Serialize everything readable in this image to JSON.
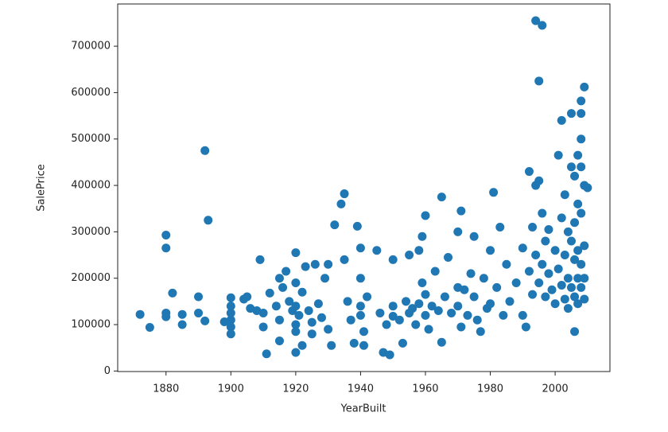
{
  "chart_data": {
    "type": "scatter",
    "xlabel": "YearBuilt",
    "ylabel": "SalePrice",
    "color": "#1f77b4",
    "xlim": [
      1865.1,
      2016.9
    ],
    "ylim": [
      -1105,
      791005
    ],
    "xticks": [
      1880,
      1900,
      1920,
      1940,
      1960,
      1980,
      2000
    ],
    "yticks": [
      0,
      100000,
      200000,
      300000,
      400000,
      500000,
      600000,
      700000
    ],
    "x": [
      1872,
      1875,
      1880,
      1880,
      1880,
      1880,
      1882,
      1885,
      1885,
      1890,
      1890,
      1892,
      1892,
      1893,
      1898,
      1900,
      1900,
      1900,
      1900,
      1900,
      1900,
      1904,
      1905,
      1906,
      1908,
      1909,
      1910,
      1910,
      1911,
      1912,
      1914,
      1915,
      1915,
      1915,
      1916,
      1917,
      1918,
      1919,
      1920,
      1920,
      1920,
      1920,
      1920,
      1920,
      1921,
      1922,
      1922,
      1923,
      1924,
      1925,
      1925,
      1926,
      1927,
      1928,
      1929,
      1930,
      1930,
      1931,
      1932,
      1934,
      1935,
      1935,
      1936,
      1937,
      1938,
      1939,
      1940,
      1940,
      1940,
      1940,
      1941,
      1941,
      1942,
      1945,
      1946,
      1947,
      1948,
      1949,
      1950,
      1950,
      1950,
      1952,
      1953,
      1954,
      1955,
      1955,
      1956,
      1957,
      1958,
      1958,
      1959,
      1959,
      1960,
      1960,
      1960,
      1961,
      1962,
      1963,
      1964,
      1965,
      1965,
      1966,
      1967,
      1968,
      1970,
      1970,
      1970,
      1971,
      1971,
      1972,
      1973,
      1974,
      1975,
      1975,
      1976,
      1977,
      1978,
      1979,
      1980,
      1980,
      1981,
      1982,
      1983,
      1984,
      1985,
      1986,
      1988,
      1990,
      1990,
      1991,
      1992,
      1992,
      1993,
      1993,
      1994,
      1994,
      1994,
      1995,
      1995,
      1995,
      1996,
      1996,
      1996,
      1997,
      1997,
      1998,
      1998,
      1999,
      2000,
      2000,
      2001,
      2001,
      2002,
      2002,
      2002,
      2003,
      2003,
      2003,
      2004,
      2004,
      2004,
      2005,
      2005,
      2005,
      2005,
      2006,
      2006,
      2006,
      2006,
      2006,
      2007,
      2007,
      2007,
      2007,
      2007,
      2008,
      2008,
      2008,
      2008,
      2008,
      2008,
      2008,
      2009,
      2009,
      2009,
      2009,
      2009,
      2010
    ],
    "values": [
      122000,
      94000,
      293000,
      265000,
      117000,
      125000,
      168000,
      122000,
      100000,
      160000,
      125000,
      475000,
      108000,
      325000,
      106000,
      158000,
      140000,
      125000,
      110000,
      95000,
      80000,
      155000,
      160000,
      135000,
      130000,
      240000,
      125000,
      95000,
      37000,
      168000,
      140000,
      200000,
      110000,
      65000,
      180000,
      215000,
      150000,
      130000,
      255000,
      190000,
      140000,
      100000,
      85000,
      40000,
      120000,
      55000,
      170000,
      225000,
      130000,
      105000,
      80000,
      230000,
      145000,
      115000,
      200000,
      90000,
      230000,
      55000,
      315000,
      360000,
      382000,
      240000,
      150000,
      110000,
      60000,
      312000,
      265000,
      200000,
      140000,
      120000,
      85000,
      55000,
      160000,
      260000,
      125000,
      40000,
      100000,
      35000,
      140000,
      118000,
      240000,
      110000,
      60000,
      150000,
      250000,
      125000,
      135000,
      100000,
      260000,
      145000,
      290000,
      190000,
      335000,
      165000,
      120000,
      90000,
      140000,
      215000,
      130000,
      375000,
      62000,
      160000,
      245000,
      125000,
      300000,
      180000,
      140000,
      345000,
      95000,
      175000,
      120000,
      210000,
      290000,
      160000,
      110000,
      85000,
      200000,
      135000,
      260000,
      145000,
      385000,
      180000,
      310000,
      120000,
      230000,
      150000,
      190000,
      265000,
      120000,
      95000,
      430000,
      215000,
      310000,
      165000,
      755000,
      400000,
      250000,
      625000,
      410000,
      190000,
      745000,
      340000,
      230000,
      280000,
      160000,
      210000,
      305000,
      175000,
      260000,
      145000,
      465000,
      220000,
      540000,
      330000,
      185000,
      380000,
      250000,
      155000,
      300000,
      200000,
      135000,
      555000,
      440000,
      280000,
      180000,
      85000,
      420000,
      320000,
      240000,
      160000,
      465000,
      360000,
      260000,
      200000,
      145000,
      582000,
      555000,
      500000,
      440000,
      340000,
      230000,
      180000,
      612000,
      400000,
      270000,
      200000,
      155000,
      395000
    ]
  }
}
